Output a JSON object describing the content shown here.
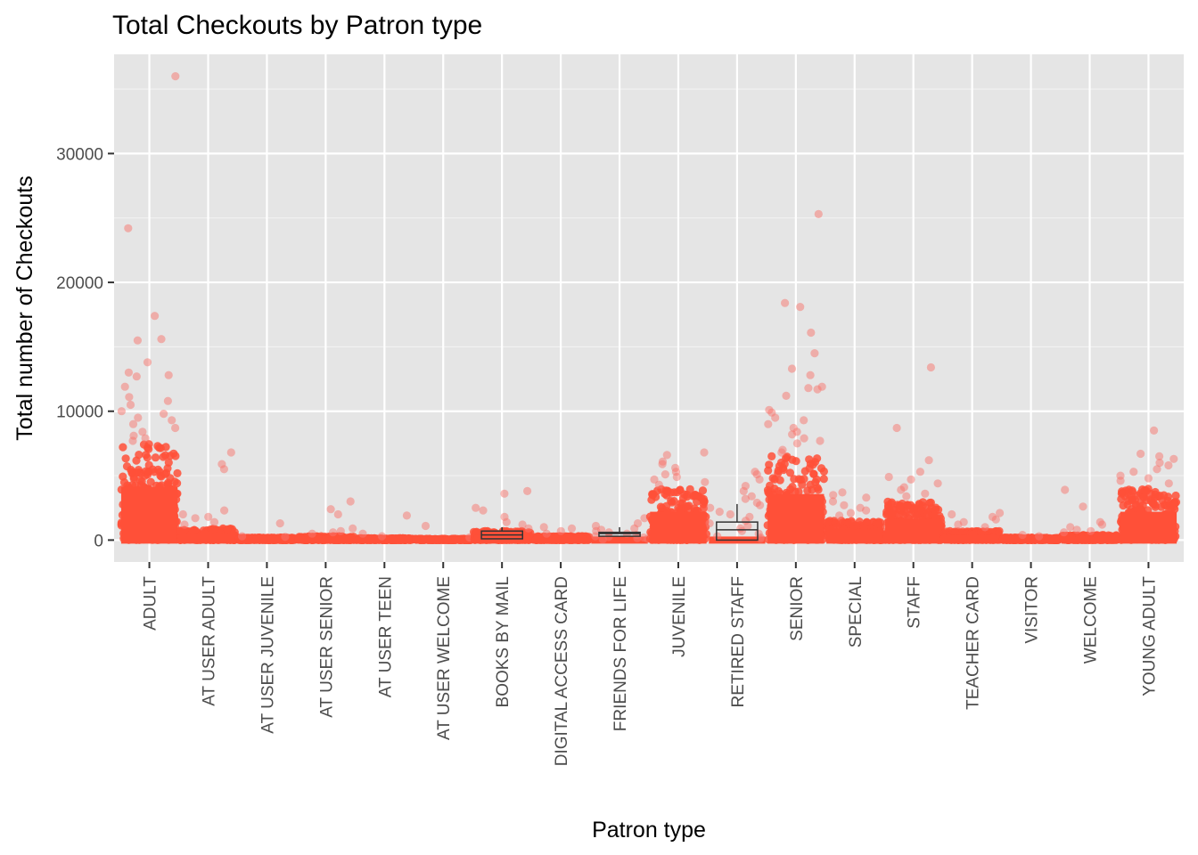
{
  "chart_data": {
    "type": "scatter",
    "title": "Total Checkouts by Patron type",
    "xlabel": "Patron type",
    "ylabel": "Total number of Checkouts",
    "categories": [
      "ADULT",
      "AT USER ADULT",
      "AT USER JUVENILE",
      "AT USER SENIOR",
      "AT USER TEEN",
      "AT USER WELCOME",
      "BOOKS BY MAIL",
      "DIGITAL ACCESS CARD",
      "FRIENDS FOR LIFE",
      "JUVENILE",
      "RETIRED STAFF",
      "SENIOR",
      "SPECIAL",
      "STAFF",
      "TEACHER CARD",
      "VISITOR",
      "WELCOME",
      "YOUNG ADULT"
    ],
    "ylim": [
      -1700,
      37700
    ],
    "y_ticks": [
      0,
      10000,
      20000,
      30000
    ],
    "y_tick_labels": [
      "0",
      "10000",
      "20000",
      "30000"
    ],
    "grid": true,
    "point_color": "#F8766D",
    "point_color_dense": "#FF5038",
    "groups": [
      {
        "category": "ADULT",
        "dense_max": 7500,
        "outliers": [
          36000,
          24200,
          17400,
          15600,
          15500,
          13800,
          13000,
          12800,
          12700,
          11900,
          11100,
          10800,
          10500,
          10000,
          9800,
          9500,
          9300,
          9000,
          8700,
          8400,
          8100,
          7900,
          7700
        ]
      },
      {
        "category": "AT USER ADULT",
        "dense_max": 900,
        "outliers": [
          6800,
          5900,
          5500,
          2300,
          2000,
          1800,
          1700,
          1400,
          1200
        ]
      },
      {
        "category": "AT USER JUVENILE",
        "dense_max": 200,
        "outliers": [
          1300,
          300,
          250
        ]
      },
      {
        "category": "AT USER SENIOR",
        "dense_max": 300,
        "outliers": [
          3000,
          2400,
          2000,
          900,
          700,
          600,
          500
        ]
      },
      {
        "category": "AT USER TEEN",
        "dense_max": 150,
        "outliers": [
          1900,
          500,
          300
        ]
      },
      {
        "category": "AT USER WELCOME",
        "dense_max": 100,
        "outliers": [
          1100,
          200
        ]
      },
      {
        "category": "BOOKS BY MAIL",
        "dense_max": 700,
        "outliers": [
          3800,
          3600,
          2500,
          2300,
          1800,
          1400,
          1200,
          900
        ]
      },
      {
        "category": "DIGITAL ACCESS CARD",
        "dense_max": 300,
        "outliers": [
          1000,
          900,
          700,
          500
        ]
      },
      {
        "category": "FRIENDS FOR LIFE",
        "dense_max": 0,
        "outliers": [
          1700,
          1300,
          1100,
          900,
          800,
          700,
          600,
          500,
          400,
          300,
          250,
          200,
          150,
          100,
          50
        ]
      },
      {
        "category": "JUVENILE",
        "dense_max": 4000,
        "outliers": [
          6800,
          6600,
          6100,
          5900,
          5600,
          5300,
          5100,
          4900,
          4700,
          4500,
          4300
        ]
      },
      {
        "category": "RETIRED STAFF",
        "dense_max": 0,
        "outliers": [
          5300,
          5100,
          4700,
          4200,
          3800,
          3400,
          3200,
          2900,
          2700,
          2500,
          2200,
          2000,
          1800,
          1500,
          1300,
          1100,
          900,
          700,
          500,
          300,
          200,
          100
        ]
      },
      {
        "category": "SENIOR",
        "dense_max": 6500,
        "outliers": [
          25300,
          18400,
          18100,
          16100,
          14500,
          13300,
          12800,
          11900,
          11800,
          11700,
          11200,
          10100,
          9900,
          9500,
          9300,
          9000,
          8700,
          8400,
          8200,
          7900,
          7700,
          7500,
          7000,
          6800
        ]
      },
      {
        "category": "SPECIAL",
        "dense_max": 1500,
        "outliers": [
          3700,
          3500,
          3300,
          3000,
          2700,
          2500,
          2300,
          2100,
          1900
        ]
      },
      {
        "category": "STAFF",
        "dense_max": 3000,
        "outliers": [
          13400,
          8700,
          6200,
          5300,
          4900,
          4700,
          4400,
          4100,
          3900,
          3600,
          3400
        ]
      },
      {
        "category": "TEACHER CARD",
        "dense_max": 700,
        "outliers": [
          2100,
          2000,
          1800,
          1600,
          1400,
          1200,
          1000
        ]
      },
      {
        "category": "VISITOR",
        "dense_max": 200,
        "outliers": [
          400,
          300
        ]
      },
      {
        "category": "WELCOME",
        "dense_max": 400,
        "outliers": [
          3900,
          2600,
          1400,
          1200,
          1000,
          800,
          700,
          600
        ]
      },
      {
        "category": "YOUNG ADULT",
        "dense_max": 4000,
        "outliers": [
          8500,
          6700,
          6500,
          6300,
          6000,
          5800,
          5500,
          5300,
          5000,
          4800,
          4600,
          4400
        ]
      }
    ],
    "boxes": [
      {
        "category": "FRIENDS FOR LIFE",
        "lower": 300,
        "median": 500,
        "upper": 600,
        "whisker_low": 0,
        "whisker_high": 1000
      },
      {
        "category": "RETIRED STAFF",
        "lower": 0,
        "median": 800,
        "upper": 1400,
        "whisker_low": 0,
        "whisker_high": 2800
      },
      {
        "category": "BOOKS BY MAIL",
        "lower": 100,
        "median": 400,
        "upper": 700,
        "whisker_low": 0,
        "whisker_high": 1000
      }
    ]
  }
}
